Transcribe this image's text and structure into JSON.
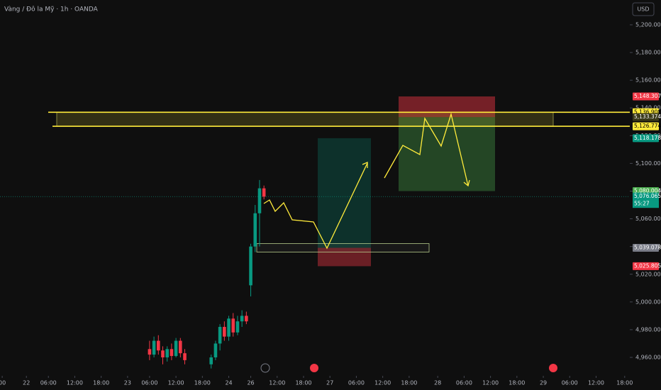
{
  "chart_data": {
    "type": "candlestick",
    "title": "Vàng / Đô la Mỹ · 1h · OANDA",
    "currency": "USD",
    "countdown": "55:27",
    "up_color": "#089981",
    "down_color": "#f23645",
    "ylim": [
      4946.7,
      5217.9
    ],
    "yticks": [
      {
        "value": 4960,
        "label": "4,960.000"
      },
      {
        "value": 4980,
        "label": "4,980.000"
      },
      {
        "value": 5000,
        "label": "5,000.000"
      },
      {
        "value": 5020,
        "label": "5,020.000"
      },
      {
        "value": 5040,
        "label": "5,040.000"
      },
      {
        "value": 5060,
        "label": "5,060.000"
      },
      {
        "value": 5080,
        "label": "5,080.000"
      },
      {
        "value": 5100,
        "label": "5,100.000"
      },
      {
        "value": 5120,
        "label": "5,120.000"
      },
      {
        "value": 5140,
        "label": "5,140.000"
      },
      {
        "value": 5160,
        "label": "5,160.000"
      },
      {
        "value": 5180,
        "label": "5,180.000"
      },
      {
        "value": 5200,
        "label": "5,200.000"
      }
    ],
    "xlim": [
      0,
      143
    ],
    "xticks": [
      {
        "value": 0.5,
        "label": "00"
      },
      {
        "value": 6,
        "label": "22"
      },
      {
        "value": 11,
        "label": "06:00"
      },
      {
        "value": 17,
        "label": "12:00"
      },
      {
        "value": 23,
        "label": "18:00"
      },
      {
        "value": 29,
        "label": "23"
      },
      {
        "value": 34,
        "label": "06:00"
      },
      {
        "value": 40,
        "label": "12:00"
      },
      {
        "value": 46,
        "label": "18:00"
      },
      {
        "value": 52,
        "label": "24"
      },
      {
        "value": 57,
        "label": "26"
      },
      {
        "value": 63,
        "label": "12:00"
      },
      {
        "value": 69,
        "label": "18:00"
      },
      {
        "value": 75,
        "label": "27"
      },
      {
        "value": 81,
        "label": "06:00"
      },
      {
        "value": 87,
        "label": "12:00"
      },
      {
        "value": 93,
        "label": "18:00"
      },
      {
        "value": 99.5,
        "label": "28"
      },
      {
        "value": 105.5,
        "label": "06:00"
      },
      {
        "value": 111.5,
        "label": "12:00"
      },
      {
        "value": 117.5,
        "label": "18:00"
      },
      {
        "value": 123.5,
        "label": "29"
      },
      {
        "value": 129.5,
        "label": "06:00"
      },
      {
        "value": 135.5,
        "label": "12:00"
      },
      {
        "value": 142,
        "label": "18:00"
      }
    ],
    "x": [
      34,
      35,
      36,
      37,
      38,
      39,
      40,
      41,
      42,
      48,
      49,
      50,
      51,
      52,
      53,
      54,
      55,
      56,
      57,
      58,
      59,
      60
    ],
    "open": [
      4966,
      4962,
      4972,
      4965,
      4960,
      4966,
      4961,
      4972,
      4963,
      4955,
      4960,
      4970,
      4982,
      4975,
      4988,
      4978,
      4986,
      4990,
      5012,
      5040,
      5064,
      5082
    ],
    "high": [
      4972,
      4975,
      4976,
      4968,
      4968,
      4970,
      4974,
      4974,
      4966,
      4962,
      4972,
      4984,
      4986,
      4990,
      4992,
      4990,
      4994,
      4993,
      5042,
      5070,
      5088,
      5084
    ],
    "low": [
      4958,
      4960,
      4962,
      4955,
      4957,
      4958,
      4960,
      4960,
      4955,
      4952,
      4958,
      4965,
      4972,
      4972,
      4975,
      4976,
      4982,
      4984,
      5004,
      5036,
      5040,
      5074
    ],
    "close": [
      4962,
      4972,
      4965,
      4960,
      4966,
      4961,
      4972,
      4963,
      4958,
      4960,
      4970,
      4982,
      4975,
      4988,
      4978,
      4986,
      4990,
      4986,
      5040,
      5064,
      5082,
      5076
    ],
    "price_labels": [
      {
        "value": 5148.307,
        "label": "5,148.307",
        "color": "#f23645"
      },
      {
        "value": 5136.908,
        "label": "5,136.908",
        "color": "#ffeb3b"
      },
      {
        "value": 5133.374,
        "label": "5,133.374",
        "color": "#3a3a1a"
      },
      {
        "value": 5126.774,
        "label": "5,126.774",
        "color": "#ffeb3b"
      },
      {
        "value": 5118.178,
        "label": "5,118.178",
        "color": "#089981"
      },
      {
        "value": 5080.004,
        "label": "5,080.004",
        "color": "#4caf50"
      },
      {
        "value": 5076.065,
        "label": "5,076.065",
        "color": "#089981"
      },
      {
        "value": 5039.078,
        "label": "5,039.078",
        "color": "#787b86"
      },
      {
        "value": 5025.805,
        "label": "5,025.805",
        "color": "#f23645"
      }
    ]
  }
}
